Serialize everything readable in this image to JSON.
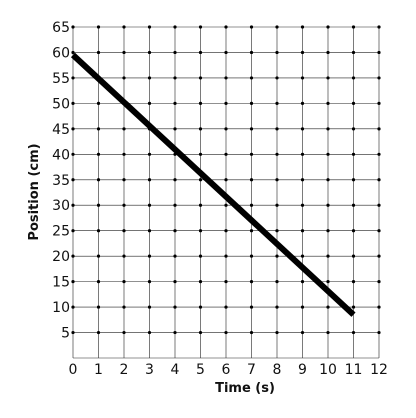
{
  "chart_data": {
    "type": "line",
    "xlabel": "Time (s)",
    "ylabel": "Position (cm)",
    "xlim": [
      0,
      12
    ],
    "ylim": [
      0,
      65
    ],
    "x_ticks": [
      0,
      1,
      2,
      3,
      4,
      5,
      6,
      7,
      8,
      9,
      10,
      11,
      12
    ],
    "y_ticks": [
      5,
      10,
      15,
      20,
      25,
      30,
      35,
      40,
      45,
      50,
      55,
      60,
      65
    ],
    "grid": true,
    "series": [
      {
        "x": [
          0,
          11
        ],
        "y": [
          59.5,
          8.5
        ],
        "color": "#000000"
      }
    ]
  }
}
